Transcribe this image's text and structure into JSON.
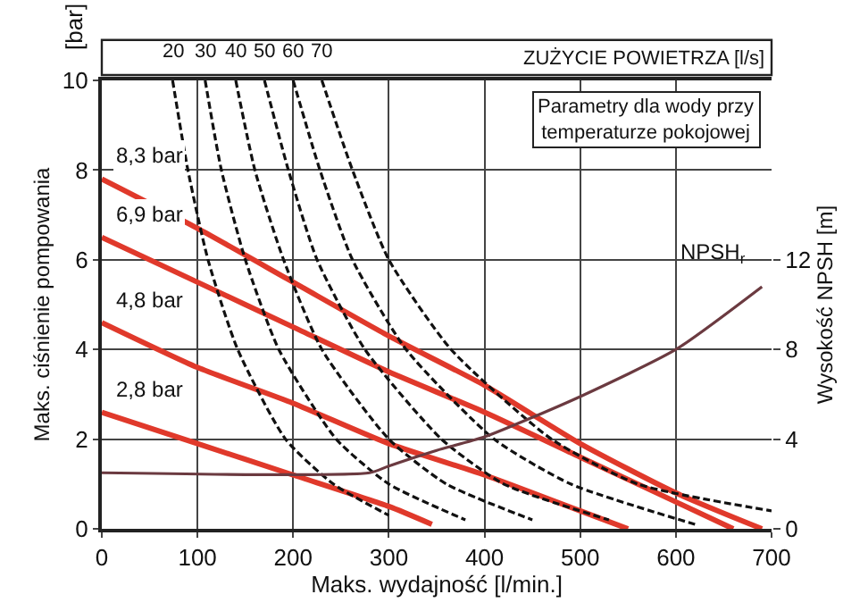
{
  "chart_data": {
    "type": "line",
    "xlabel": "Maks. wydajność [l/min.]",
    "ylabel": "Maks. ciśnienie pompowania",
    "y2label": "Wysokość NPSH [m]",
    "annotations": [
      "ZUŻYCIE POWIETRZA [l/s]",
      "Parametry dla wody przy\ntemperaturze pokojowej",
      "[bar]"
    ],
    "xlim": [
      0,
      700
    ],
    "xticks": [
      0,
      100,
      200,
      300,
      400,
      500,
      600,
      700
    ],
    "ylim": [
      0,
      10
    ],
    "yticks": [
      0,
      2,
      4,
      6,
      8,
      10
    ],
    "y2lim": [
      0,
      20
    ],
    "y2ticks": [
      0,
      4,
      8,
      12
    ],
    "grid": true,
    "legend": false,
    "marker": "none",
    "series": [
      {
        "name": "8,3 bar",
        "color": "#e0392b",
        "line_style": "solid",
        "x": [
          0,
          100,
          200,
          300,
          400,
          500,
          600,
          690
        ],
        "values": [
          7.8,
          6.7,
          5.5,
          4.3,
          3.2,
          1.9,
          0.8,
          0
        ]
      },
      {
        "name": "6,9 bar",
        "color": "#e0392b",
        "line_style": "solid",
        "x": [
          0,
          100,
          200,
          300,
          400,
          500,
          600,
          660
        ],
        "values": [
          6.5,
          5.5,
          4.5,
          3.5,
          2.6,
          1.6,
          0.6,
          0
        ]
      },
      {
        "name": "4,8 bar",
        "color": "#e0392b",
        "line_style": "solid",
        "x": [
          0,
          100,
          200,
          300,
          400,
          500,
          550
        ],
        "values": [
          4.6,
          3.6,
          2.8,
          1.9,
          1.2,
          0.4,
          0
        ]
      },
      {
        "name": "2,8 bar",
        "color": "#e0392b",
        "line_style": "solid",
        "x": [
          0,
          100,
          200,
          300,
          345
        ],
        "values": [
          2.6,
          1.9,
          1.2,
          0.5,
          0.1
        ]
      },
      {
        "name": "20",
        "color": "#111111",
        "line_style": "dashed",
        "x": [
          74,
          90,
          111,
          142,
          192,
          242,
          300
        ],
        "values": [
          10,
          8,
          6,
          4,
          2,
          1,
          0.3
        ]
      },
      {
        "name": "30",
        "color": "#111111",
        "line_style": "dashed",
        "x": [
          108,
          125,
          150,
          185,
          245,
          300,
          380
        ],
        "values": [
          10,
          8,
          6,
          4,
          2,
          1,
          0.2
        ]
      },
      {
        "name": "40",
        "color": "#111111",
        "line_style": "dashed",
        "x": [
          140,
          160,
          190,
          230,
          300,
          360,
          450
        ],
        "values": [
          10,
          8,
          6,
          4,
          2,
          1,
          0.2
        ]
      },
      {
        "name": "50",
        "color": "#111111",
        "line_style": "dashed",
        "x": [
          170,
          195,
          225,
          275,
          355,
          420,
          530
        ],
        "values": [
          10,
          8,
          6,
          4,
          2,
          1,
          0.2
        ]
      },
      {
        "name": "60",
        "color": "#111111",
        "line_style": "dashed",
        "x": [
          200,
          228,
          262,
          318,
          410,
          490,
          620
        ],
        "values": [
          10,
          8,
          6,
          4,
          2,
          1,
          0.1
        ]
      },
      {
        "name": "70",
        "color": "#111111",
        "line_style": "dashed",
        "x": [
          230,
          262,
          300,
          365,
          470,
          560,
          700
        ],
        "values": [
          10,
          8,
          6,
          4,
          2,
          1,
          0.4
        ]
      },
      {
        "name": "NPSH$_{r}$",
        "color": "#6b3a40",
        "line_style": "solid",
        "axis": "y2",
        "x": [
          0,
          280,
          300,
          350,
          400,
          500,
          600,
          690
        ],
        "values": [
          2.5,
          2.5,
          2.8,
          3.5,
          4.1,
          5.9,
          8.0,
          10.8
        ]
      }
    ]
  }
}
